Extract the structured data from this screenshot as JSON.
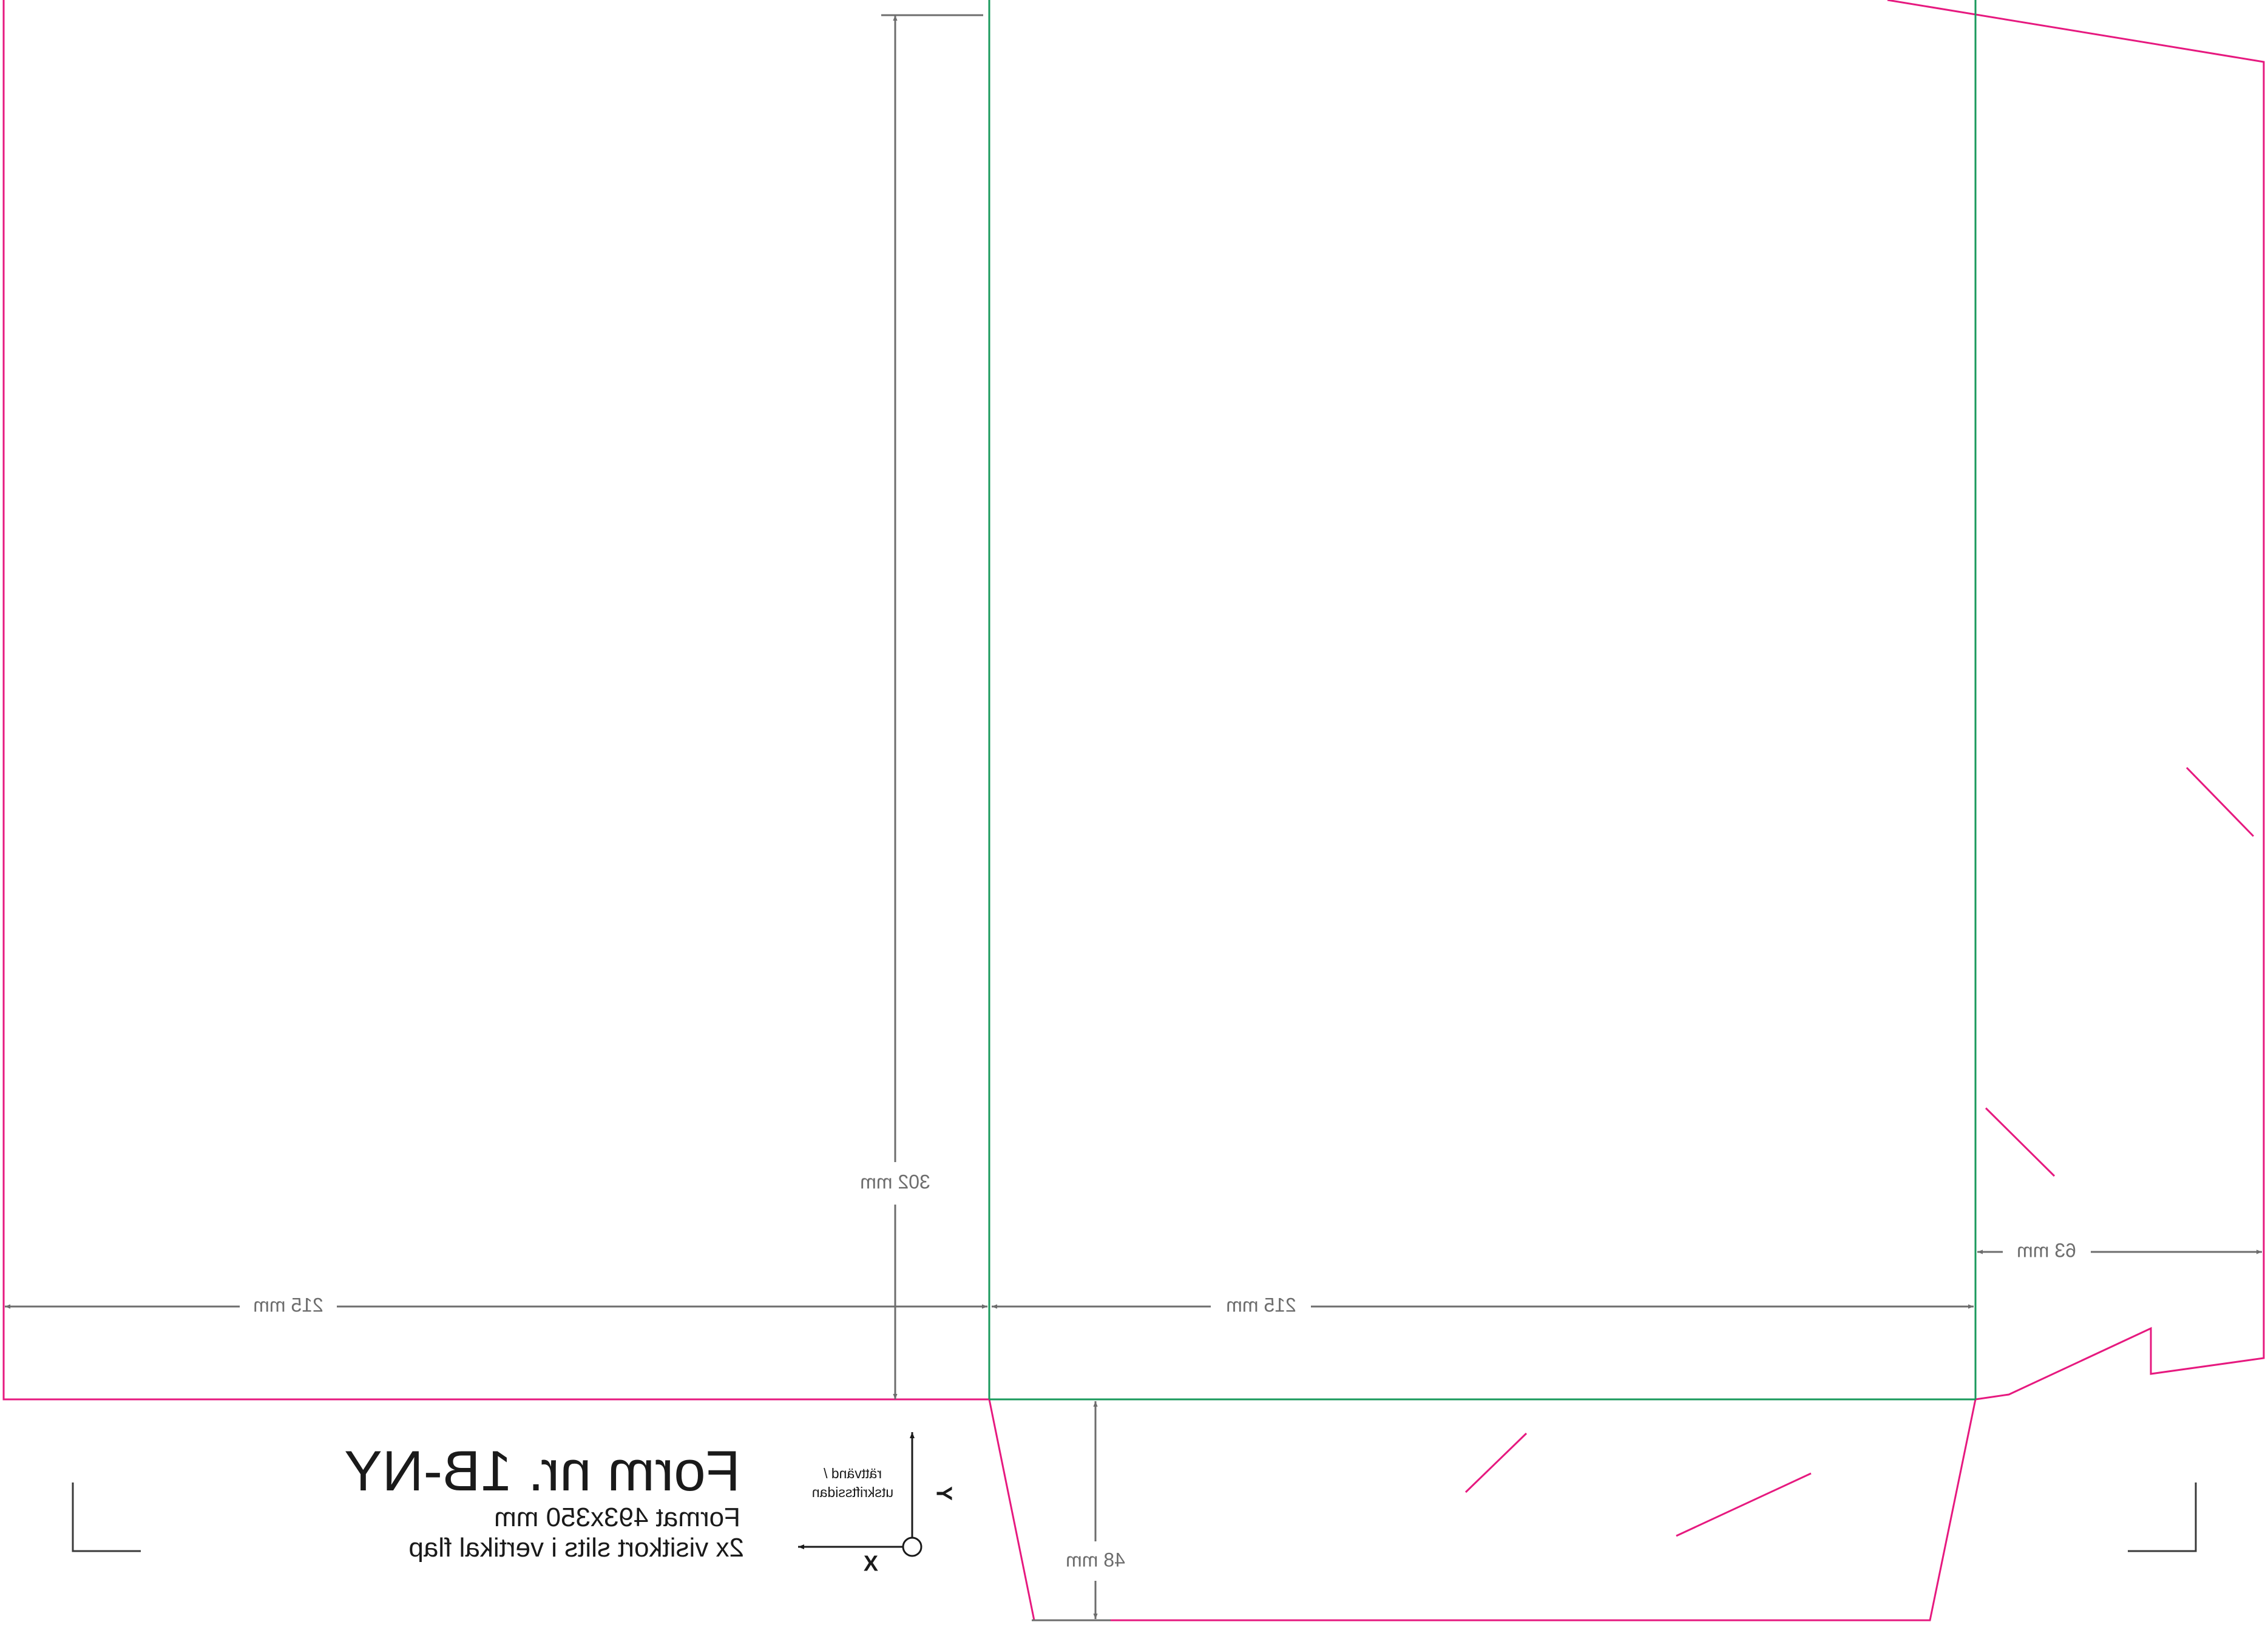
{
  "title_block": {
    "form_number": "Form nr. 1B-NY",
    "format": "Format 493x350 mm",
    "description": "2x visitkort slits i vertikal flap"
  },
  "orientation": {
    "side_line1": "rättvänd /",
    "side_line2": "utskriftssidan",
    "x_label": "X",
    "y_label": "Y"
  },
  "dimensions": {
    "height_main": "302 mm",
    "width_left_panel": "215 mm",
    "width_right_panel": "215 mm",
    "width_side_flap": "63 mm",
    "height_bottom_flap": "48 mm"
  },
  "colors": {
    "cut": "#e6197f",
    "fold": "#1a9a5c",
    "dimension": "#6d6d6d",
    "text": "#1a1a1a",
    "crop_mark": "#3a3a3a"
  }
}
